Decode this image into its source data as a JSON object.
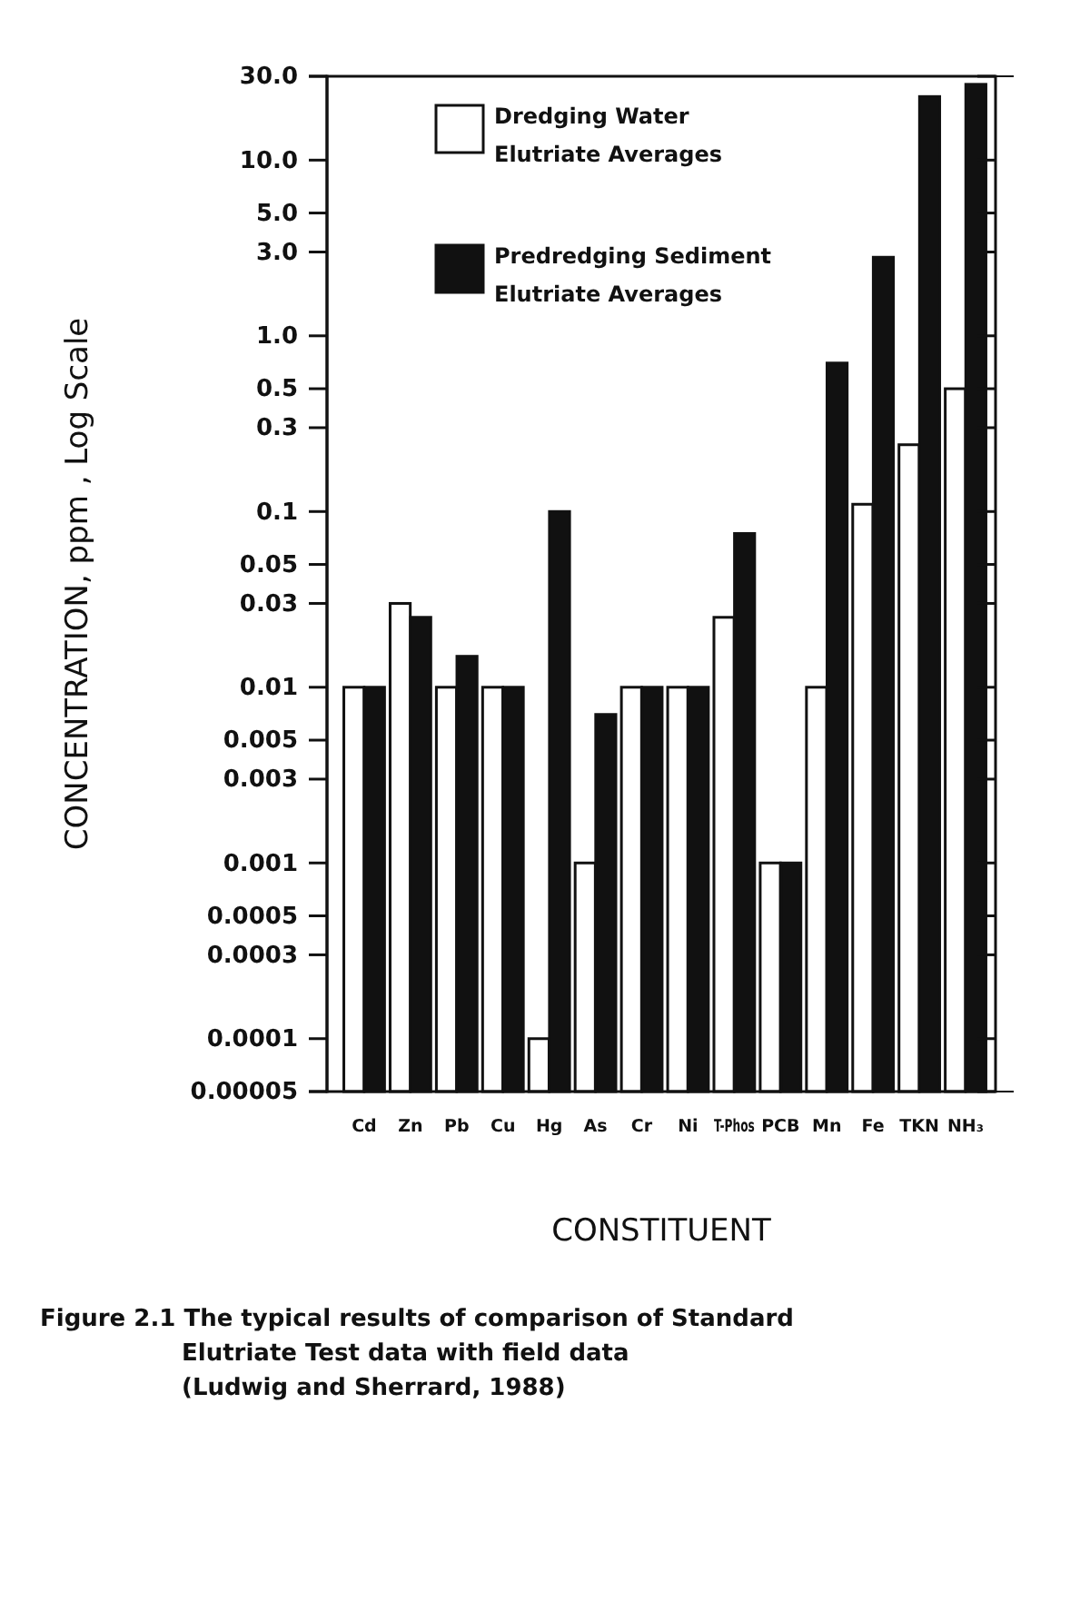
{
  "chart_data": {
    "type": "bar",
    "xlabel": "CONSTITUENT",
    "ylabel": "CONCENTRATION, ppm , Log Scale",
    "categories": [
      "Cd",
      "Zn",
      "Pb",
      "Cu",
      "Hg",
      "As",
      "Cr",
      "Ni",
      "T-Phos",
      "PCB",
      "Mn",
      "Fe",
      "TKN",
      "NH₃"
    ],
    "series": [
      {
        "name": "Dredging Water Elutriate Averages",
        "color": "#ffffff",
        "values": [
          0.01,
          0.03,
          0.01,
          0.01,
          0.0001,
          0.001,
          0.01,
          0.01,
          0.025,
          0.001,
          0.01,
          0.11,
          0.24,
          0.5
        ]
      },
      {
        "name": "Predredging Sediment Elutriate Averages",
        "color": "#111111",
        "values": [
          0.01,
          0.025,
          0.015,
          0.01,
          0.1,
          0.007,
          0.01,
          0.01,
          0.075,
          0.001,
          0.7,
          2.8,
          23,
          27
        ]
      }
    ],
    "log": "y",
    "ylim": [
      5e-05,
      30
    ],
    "yticks": [
      {
        "value": 30,
        "label": "30.0"
      },
      {
        "value": 10,
        "label": "10.0"
      },
      {
        "value": 5,
        "label": "5.0"
      },
      {
        "value": 3,
        "label": "3.0"
      },
      {
        "value": 1,
        "label": "1.0"
      },
      0.5,
      0.3,
      0.1,
      0.05,
      0.03,
      0.01,
      0.005,
      0.003,
      0.001,
      0.0005,
      0.0003,
      0.0001,
      {
        "value": 5e-05,
        "label": "0.00005"
      }
    ],
    "legend": "top left",
    "grid": false,
    "annotations": [
      "Figure 2.1 The typical results of comparison of Standard",
      "Elutriate Test data with field data",
      "(Ludwig and Sherrard, 1988)"
    ]
  }
}
